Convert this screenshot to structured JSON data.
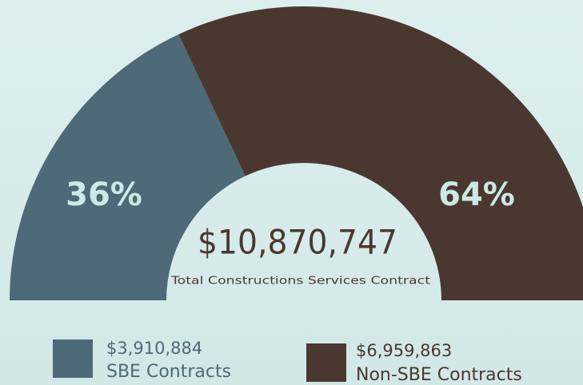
{
  "chart_data": {
    "type": "semi-donut",
    "categories": [
      "SBE Contracts",
      "Non-SBE Contracts"
    ],
    "values": [
      36,
      64
    ],
    "value_labels": [
      "36%",
      "64%"
    ],
    "colors": [
      "#4e6977",
      "#4a3830"
    ],
    "legend_amounts": [
      "$3,910,884",
      "$6,959,863"
    ],
    "center_value": "$10,870,747",
    "center_label": "Total Constructions Services Contract"
  }
}
